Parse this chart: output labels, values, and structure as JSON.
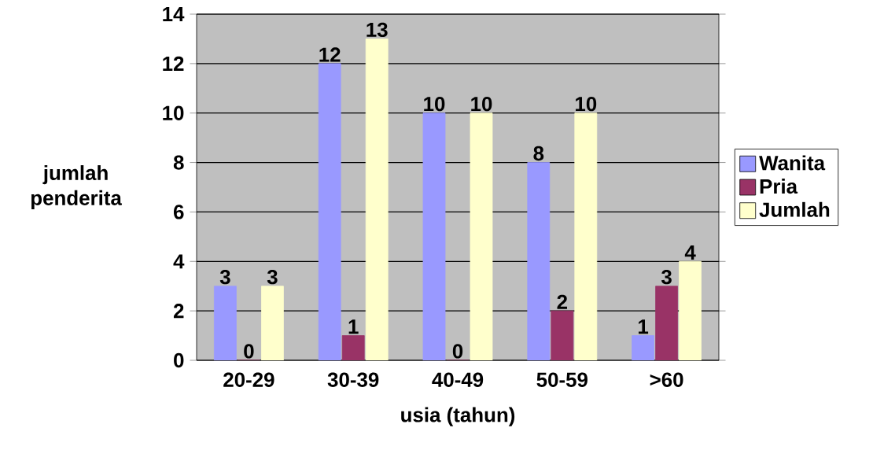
{
  "chart_data": {
    "type": "bar",
    "xlabel": "usia (tahun)",
    "ylabel": "jumlah penderita",
    "categories": [
      "20-29",
      "30-39",
      "40-49",
      "50-59",
      ">60"
    ],
    "series": [
      {
        "name": "Wanita",
        "color": "#9999ff",
        "values": [
          3,
          12,
          10,
          8,
          1
        ]
      },
      {
        "name": "Pria",
        "color": "#993366",
        "values": [
          0,
          1,
          0,
          2,
          3
        ]
      },
      {
        "name": "Jumlah",
        "color": "#ffffcc",
        "values": [
          3,
          13,
          10,
          10,
          4
        ]
      }
    ],
    "ylim": [
      0,
      14
    ],
    "yticks": [
      0,
      2,
      4,
      6,
      8,
      10,
      12,
      14
    ],
    "grid": "y",
    "legend": "right",
    "data_labels": true
  }
}
